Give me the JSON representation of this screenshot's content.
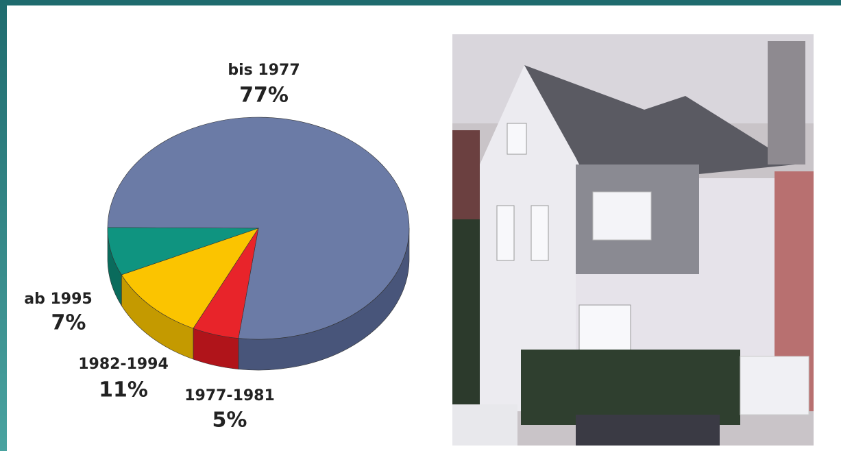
{
  "chart_data": {
    "type": "pie",
    "categories": [
      "bis 1977",
      "1977-1981",
      "1982-1994",
      "ab 1995"
    ],
    "values": [
      77,
      5,
      11,
      7
    ],
    "value_labels": [
      "77%",
      "5%",
      "11%",
      "7%"
    ],
    "colors": [
      "#6b7ba6",
      "#e8242a",
      "#fbc400",
      "#0f9480"
    ],
    "side_colors": [
      "#48557a",
      "#b0141a",
      "#c49a00",
      "#0a6b5c"
    ]
  }
}
